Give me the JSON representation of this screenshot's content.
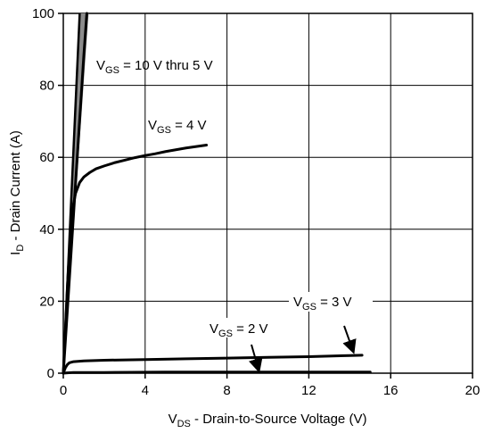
{
  "chart_data": {
    "type": "line",
    "title": "",
    "xlabel": {
      "main": "V",
      "sub": "DS",
      "rest": " - Drain-to-Source Voltage (V)"
    },
    "ylabel": {
      "main": "I",
      "sub": "D",
      "rest": " - Drain Current (A)"
    },
    "xlim": [
      0,
      20
    ],
    "ylim": [
      0,
      100
    ],
    "xticks": [
      "0",
      "4",
      "8",
      "12",
      "16",
      "20"
    ],
    "yticks": [
      "0",
      "20",
      "40",
      "60",
      "80",
      "100"
    ],
    "grid": true,
    "series": [
      {
        "name": "VGS = 10 V thru 5 V",
        "x": [
          0,
          0.25,
          0.5,
          0.75,
          1.0,
          1.15
        ],
        "y": [
          0,
          22,
          44,
          66,
          88,
          100
        ]
      },
      {
        "name": "VGS = 4 V",
        "x": [
          0,
          0.1,
          0.2,
          0.3,
          0.4,
          0.5,
          0.6,
          0.8,
          1.0,
          1.3,
          1.6,
          2.0,
          2.5,
          3.0,
          3.5,
          4.0,
          4.5,
          5.0,
          5.5,
          6.0,
          6.5,
          7.0
        ],
        "y": [
          0,
          12,
          24,
          34,
          42,
          47,
          50,
          53,
          54.5,
          55.8,
          56.8,
          57.6,
          58.5,
          59.2,
          59.9,
          60.5,
          61.0,
          61.6,
          62.1,
          62.6,
          63.0,
          63.4
        ]
      },
      {
        "name": "VGS = 3 V",
        "x": [
          0,
          0.1,
          0.2,
          0.3,
          0.5,
          1.0,
          2.0,
          4.0,
          6.0,
          8.0,
          10.0,
          12.0,
          14.0,
          14.6
        ],
        "y": [
          0,
          1.5,
          2.4,
          2.9,
          3.2,
          3.4,
          3.6,
          3.8,
          4.0,
          4.2,
          4.4,
          4.6,
          4.9,
          5.0
        ]
      },
      {
        "name": "VGS = 2 V",
        "x": [
          0,
          0.2,
          0.5,
          2.0,
          5.0,
          8.0,
          11.0,
          14.0,
          15.0
        ],
        "y": [
          0,
          0.1,
          0.2,
          0.2,
          0.3,
          0.3,
          0.3,
          0.3,
          0.3
        ]
      }
    ],
    "annotations": [
      {
        "main": "V",
        "sub": "GS",
        "rest": " = 10 V thru 5 V"
      },
      {
        "main": "V",
        "sub": "GS",
        "rest": " = 4 V"
      },
      {
        "main": "V",
        "sub": "GS",
        "rest": " = 3 V"
      },
      {
        "main": "V",
        "sub": "GS",
        "rest": " = 2 V"
      }
    ]
  }
}
